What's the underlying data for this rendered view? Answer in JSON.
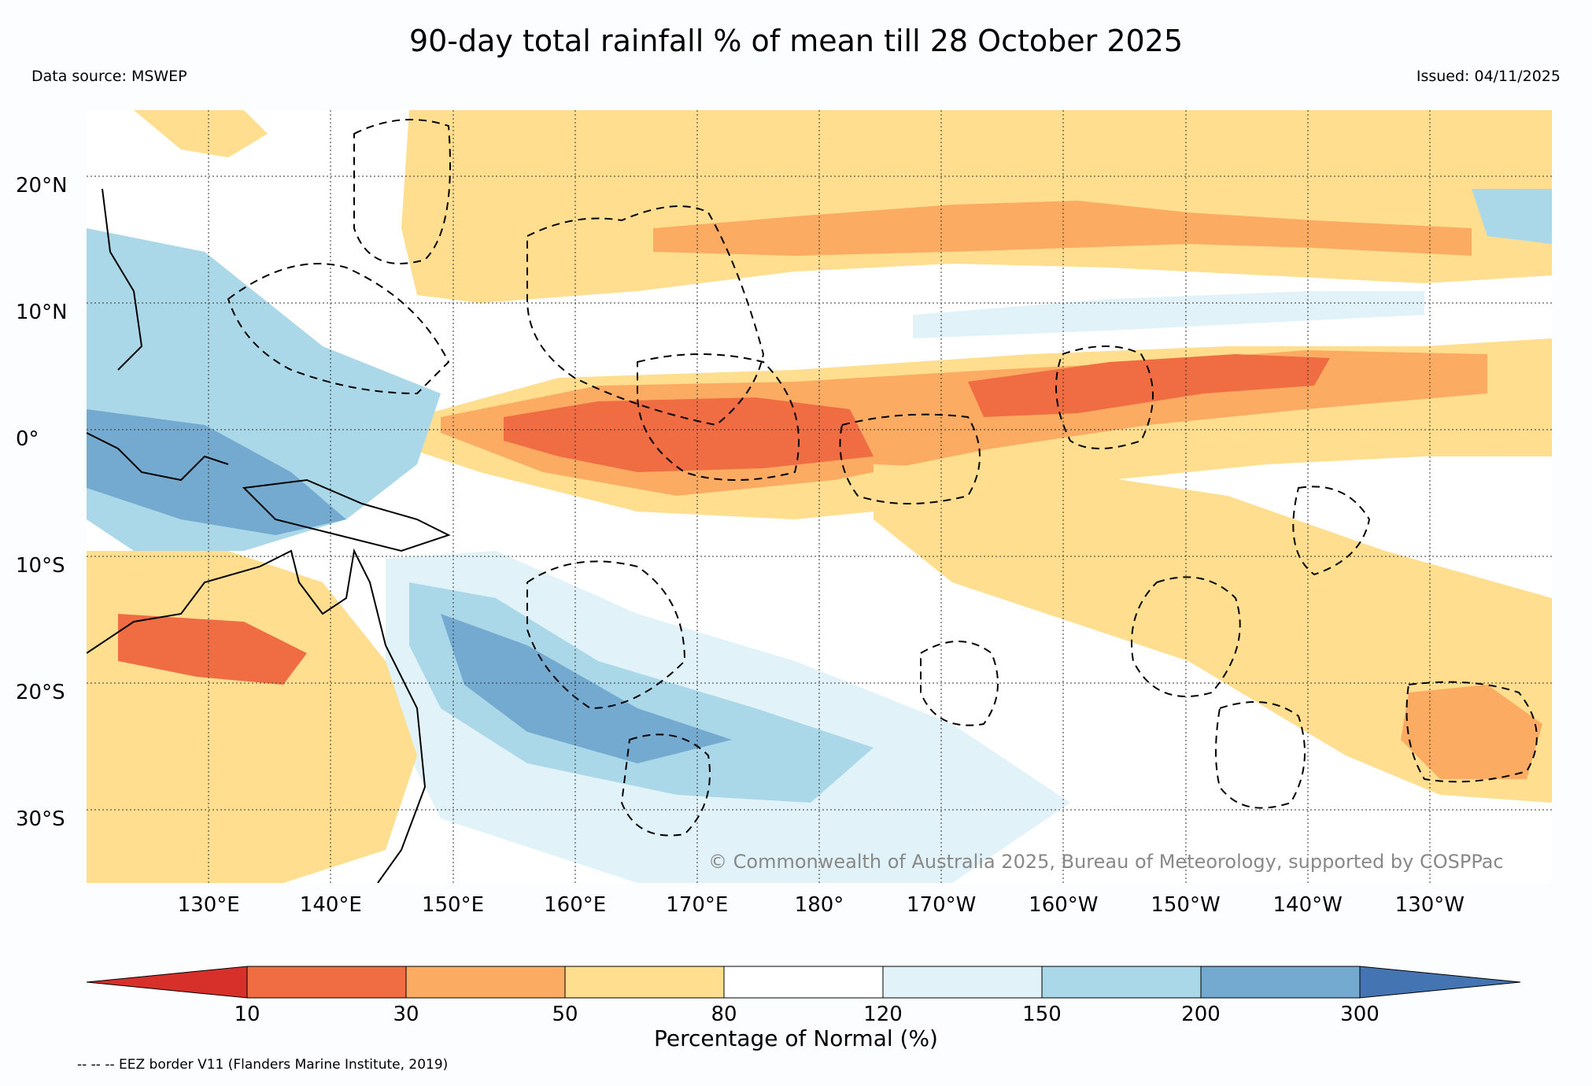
{
  "title": "90-day total rainfall % of mean till 28 October 2025",
  "data_source": "Data source: MSWEP",
  "issued": "Issued: 04/11/2025",
  "copyright": "© Commonwealth of Australia 2025, Bureau of Meteorology, supported by COSPPac",
  "eez_note": "-- -- -- EEZ border V11 (Flanders Marine Institute, 2019)",
  "map": {
    "lon_range_deg_east": [
      120,
      240
    ],
    "lat_range": [
      -35,
      26
    ],
    "lat_ticks": [
      {
        "lat": 20,
        "label": "20°N"
      },
      {
        "lat": 10,
        "label": "10°N"
      },
      {
        "lat": 0,
        "label": "0°"
      },
      {
        "lat": -10,
        "label": "10°S"
      },
      {
        "lat": -20,
        "label": "20°S"
      },
      {
        "lat": -30,
        "label": "30°S"
      }
    ],
    "lon_ticks": [
      {
        "lon": 130,
        "label": "130°E"
      },
      {
        "lon": 140,
        "label": "140°E"
      },
      {
        "lon": 150,
        "label": "150°E"
      },
      {
        "lon": 160,
        "label": "160°E"
      },
      {
        "lon": 170,
        "label": "170°E"
      },
      {
        "lon": 180,
        "label": "180°"
      },
      {
        "lon": 190,
        "label": "170°W"
      },
      {
        "lon": 200,
        "label": "160°W"
      },
      {
        "lon": 210,
        "label": "150°W"
      },
      {
        "lon": 220,
        "label": "140°W"
      },
      {
        "lon": 230,
        "label": "130°W"
      }
    ]
  },
  "colorbar": {
    "title": "Percentage of Normal (%)",
    "bins": [
      {
        "label": "<10",
        "color": "#d7302a"
      },
      {
        "label": "10-30",
        "color": "#f06d43"
      },
      {
        "label": "30-50",
        "color": "#fbac62"
      },
      {
        "label": "50-80",
        "color": "#ffdf8f"
      },
      {
        "label": "80-120",
        "color": "#ffffff"
      },
      {
        "label": "120-150",
        "color": "#e1f2f8"
      },
      {
        "label": "150-200",
        "color": "#abd8e9"
      },
      {
        "label": "200-300",
        "color": "#74aacf"
      },
      {
        "label": ">300",
        "color": "#4574b3"
      }
    ],
    "ticks": [
      "10",
      "30",
      "50",
      "80",
      "120",
      "150",
      "200",
      "300"
    ]
  }
}
